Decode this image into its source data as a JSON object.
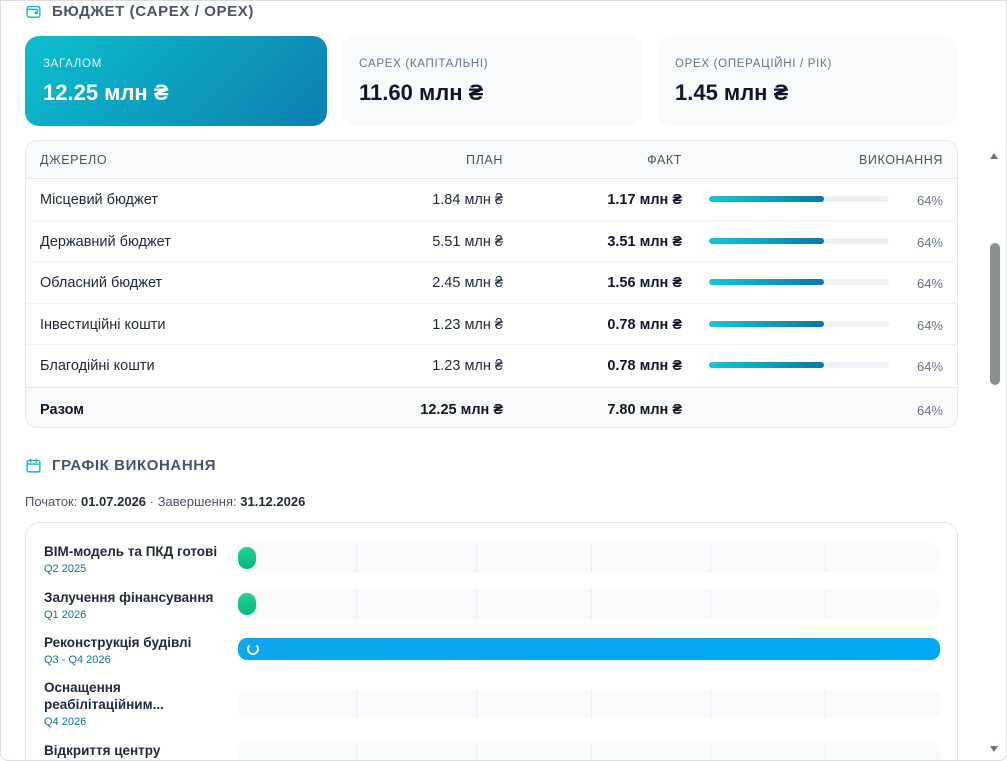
{
  "budget": {
    "title": "БЮДЖЕТ (CAPEX / OPEX)",
    "cards": {
      "total": {
        "label": "ЗАГАЛОМ",
        "value": "12.25 млн ₴"
      },
      "capex": {
        "label": "CAPEX (КАПІТАЛЬНІ)",
        "value": "11.60 млн ₴"
      },
      "opex": {
        "label": "OPEX (ОПЕРАЦІЙНІ / РІК)",
        "value": "1.45 млн ₴"
      }
    },
    "table": {
      "headers": {
        "source": "ДЖЕРЕЛО",
        "plan": "ПЛАН",
        "fact": "ФАКТ",
        "execution": "ВИКОНАННЯ"
      },
      "rows": [
        {
          "source": "Місцевий бюджет",
          "plan": "1.84 млн ₴",
          "fact": "1.17 млн ₴",
          "percent": "64%",
          "progress": 0.64
        },
        {
          "source": "Державний бюджет",
          "plan": "5.51 млн ₴",
          "fact": "3.51 млн ₴",
          "percent": "64%",
          "progress": 0.64
        },
        {
          "source": "Обласний бюджет",
          "plan": "2.45 млн ₴",
          "fact": "1.56 млн ₴",
          "percent": "64%",
          "progress": 0.64
        },
        {
          "source": "Інвестиційні кошти",
          "plan": "1.23 млн ₴",
          "fact": "0.78 млн ₴",
          "percent": "64%",
          "progress": 0.64
        },
        {
          "source": "Благодійні кошти",
          "plan": "1.23 млн ₴",
          "fact": "0.78 млн ₴",
          "percent": "64%",
          "progress": 0.64
        }
      ],
      "total": {
        "source": "Разом",
        "plan": "12.25 млн ₴",
        "fact": "7.80 млн ₴",
        "percent": "64%"
      }
    }
  },
  "schedule": {
    "title": "ГРАФІК ВИКОНАННЯ",
    "start_label": "Початок:",
    "start": "01.07.2026",
    "separator": "·",
    "end_label": "Завершення:",
    "end": "31.12.2026",
    "tasks": [
      {
        "name": "BIM-модель та ПКД готові",
        "period": "Q2 2025",
        "status": "done"
      },
      {
        "name": "Залучення фінансування",
        "period": "Q1 2026",
        "status": "done"
      },
      {
        "name": "Реконструкція будівлі",
        "period": "Q3 - Q4 2026",
        "status": "in-progress"
      },
      {
        "name": "Оснащення реабілітаційним...",
        "period": "Q4 2026",
        "status": "planned"
      },
      {
        "name": "Відкриття центру",
        "period": "",
        "status": "planned"
      }
    ]
  },
  "icons": {
    "budget": "wallet-icon",
    "schedule": "calendar-icon"
  },
  "colors": {
    "accent": "#0e9fbe",
    "milestone": "#16c784",
    "progress": "#0ea5e9"
  }
}
